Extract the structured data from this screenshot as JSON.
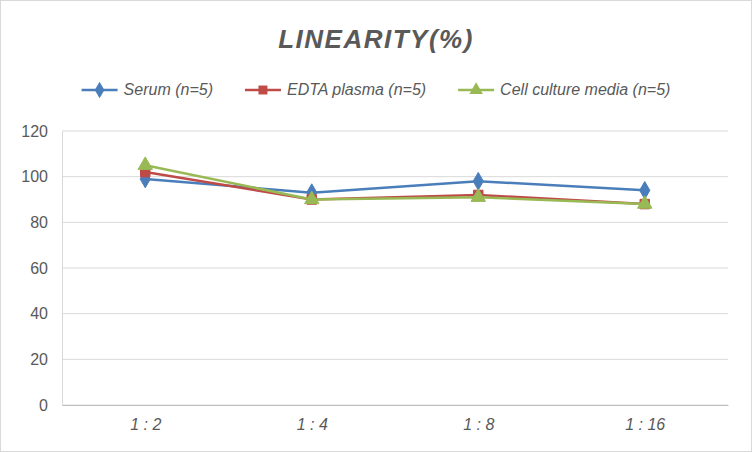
{
  "chart_data": {
    "type": "line",
    "title": "LINEARITY(%)",
    "categories": [
      "1 : 2",
      "1 : 4",
      "1 : 8",
      "1 : 16"
    ],
    "series": [
      {
        "name": "Serum (n=5)",
        "color": "#4a7ebb",
        "marker": "diamond",
        "values": [
          99,
          93,
          98,
          94
        ]
      },
      {
        "name": "EDTA plasma (n=5)",
        "color": "#be4b48",
        "marker": "square",
        "values": [
          102,
          90,
          92,
          88
        ]
      },
      {
        "name": "Cell culture media (n=5)",
        "color": "#98b954",
        "marker": "triangle",
        "values": [
          105,
          90,
          91,
          88
        ]
      }
    ],
    "ylim": [
      0,
      120
    ],
    "yticks": [
      0,
      20,
      40,
      60,
      80,
      100,
      120
    ],
    "grid": true,
    "legend": "top"
  }
}
